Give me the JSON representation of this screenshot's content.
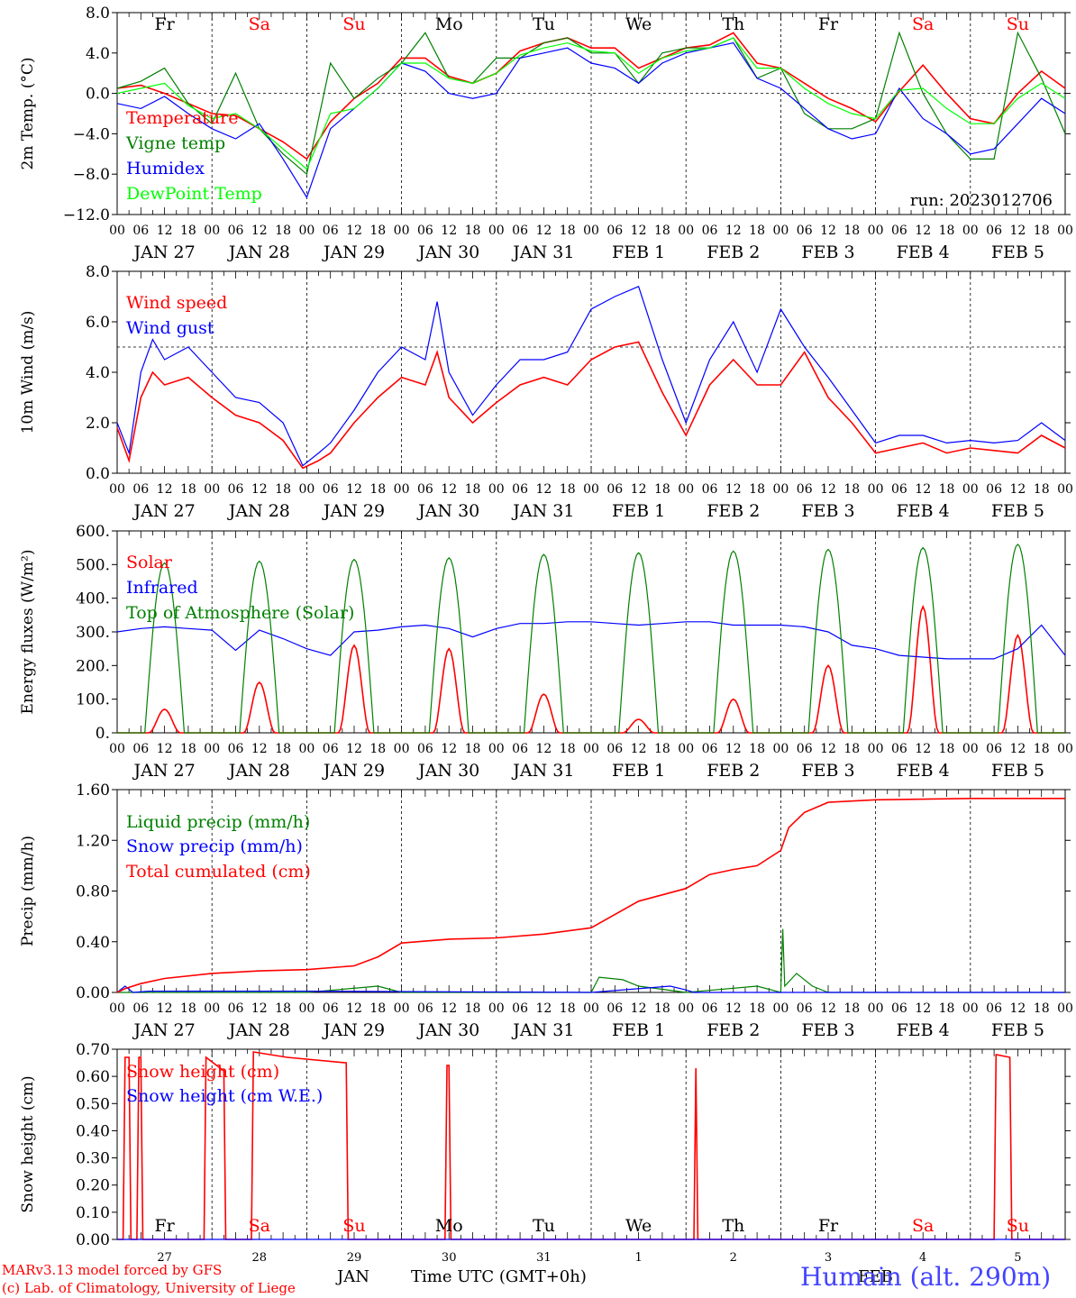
{
  "footer": {
    "model": "MARv3.13 model forced by GFS",
    "credit": "(c) Lab. of Climatology, University of Liege",
    "month": "JAN",
    "time_axis": "Time UTC (GMT+0h)",
    "month_overlap": "FEB",
    "station": "Humain (alt. 290m)"
  },
  "colors": {
    "red": "#ff0000",
    "green": "#008000",
    "blue": "#0000ff",
    "lightgreen": "#00ff00",
    "weekend": "#ff0000",
    "weekday": "#000000",
    "station": "#4444ff"
  },
  "axis": {
    "hour_ticks": [
      "00",
      "06",
      "12",
      "18"
    ],
    "final_tick": "00",
    "date_labels": [
      "JAN 27",
      "JAN 28",
      "JAN 29",
      "JAN 30",
      "JAN 31",
      "FEB  1",
      "FEB  2",
      "FEB  3",
      "FEB  4",
      "FEB  5"
    ],
    "day_names": [
      "Fr",
      "Sa",
      "Su",
      "Mo",
      "Tu",
      "We",
      "Th",
      "Fr",
      "Sa",
      "Su"
    ],
    "weekend": [
      false,
      true,
      true,
      false,
      false,
      false,
      false,
      false,
      true,
      true
    ],
    "day_numbers": [
      "27",
      "28",
      "29",
      "30",
      "31",
      "1",
      "2",
      "3",
      "4",
      "5"
    ]
  },
  "chart_data": [
    {
      "id": "temp",
      "type": "line",
      "ylabel": "2m Temp. (°C)",
      "ylim": [
        -12,
        8
      ],
      "yticks": [
        "8.0",
        "4.0",
        "0.0",
        "−4.0",
        "−8.0",
        "−12.0"
      ],
      "ytick_values": [
        8,
        4,
        0,
        -4,
        -8,
        -12
      ],
      "ref_line": 0,
      "annotation": "run: 2023012706",
      "series": [
        {
          "name": "Temperature",
          "color": "red",
          "x": [
            0,
            6,
            12,
            18,
            24,
            30,
            36,
            42,
            48,
            54,
            60,
            66,
            72,
            78,
            84,
            90,
            96,
            102,
            108,
            114,
            120,
            126,
            132,
            138,
            144,
            150,
            156,
            162,
            168,
            174,
            180,
            186,
            192,
            198,
            204,
            210,
            216,
            222,
            228,
            234,
            240
          ],
          "y": [
            0.5,
            0.8,
            0,
            -1.0,
            -2.0,
            -2.2,
            -3.5,
            -4.8,
            -6.5,
            -2.8,
            -0.5,
            1.0,
            3.5,
            3.5,
            1.7,
            1.0,
            2.0,
            4.2,
            5.0,
            5.5,
            4.5,
            4.5,
            2.5,
            3.5,
            4.5,
            4.8,
            6.0,
            3.0,
            2.5,
            1.0,
            -0.5,
            -1.5,
            -2.8,
            0.2,
            2.8,
            0,
            -2.5,
            -3.0,
            0,
            2.2,
            0.5
          ]
        },
        {
          "name": "Vigne temp",
          "color": "green",
          "x": [
            0,
            6,
            12,
            18,
            24,
            30,
            36,
            42,
            48,
            54,
            60,
            66,
            72,
            78,
            84,
            90,
            96,
            102,
            108,
            114,
            120,
            126,
            132,
            138,
            144,
            150,
            156,
            162,
            168,
            174,
            180,
            186,
            192,
            198,
            204,
            210,
            216,
            222,
            228,
            234,
            240
          ],
          "y": [
            0.5,
            1.2,
            2.5,
            -1.0,
            -3.0,
            2.0,
            -3.5,
            -6.0,
            -8.0,
            3.0,
            -0.5,
            1.5,
            3.0,
            6.0,
            1.5,
            1.0,
            3.5,
            3.5,
            5.0,
            5.5,
            4.0,
            4.0,
            1.0,
            4.0,
            4.5,
            4.5,
            5.5,
            1.5,
            2.5,
            -2.0,
            -3.5,
            -3.5,
            -2.5,
            6.0,
            0,
            -4.0,
            -6.5,
            -6.5,
            6.0,
            1.5,
            -4.0
          ]
        },
        {
          "name": "Humidex",
          "color": "blue",
          "x": [
            0,
            6,
            12,
            18,
            24,
            30,
            36,
            42,
            48,
            54,
            60,
            66,
            72,
            78,
            84,
            90,
            96,
            102,
            108,
            114,
            120,
            126,
            132,
            138,
            144,
            150,
            156,
            162,
            168,
            174,
            180,
            186,
            192,
            198,
            204,
            210,
            216,
            222,
            228,
            234,
            240
          ],
          "y": [
            -1.0,
            -1.5,
            -0.3,
            -2.0,
            -3.5,
            -4.5,
            -3.0,
            -6.5,
            -10.3,
            -3.5,
            -1.5,
            0.5,
            3.0,
            2.2,
            0,
            -0.5,
            0,
            3.5,
            4.0,
            4.5,
            3.0,
            2.5,
            1.0,
            3.0,
            4.0,
            4.5,
            5.0,
            1.5,
            0.5,
            -1.5,
            -3.5,
            -4.5,
            -4.0,
            0.5,
            -2.5,
            -4.0,
            -6.0,
            -5.5,
            -3.0,
            -0.5,
            -2.0
          ]
        },
        {
          "name": "DewPoint Temp",
          "color": "lightgreen",
          "x": [
            0,
            6,
            12,
            18,
            24,
            30,
            36,
            42,
            48,
            54,
            60,
            66,
            72,
            78,
            84,
            90,
            96,
            102,
            108,
            114,
            120,
            126,
            132,
            138,
            144,
            150,
            156,
            162,
            168,
            174,
            180,
            186,
            192,
            198,
            204,
            210,
            216,
            222,
            228,
            234,
            240
          ],
          "y": [
            0,
            0.5,
            1.0,
            -1.2,
            -2.5,
            -2.0,
            -3.5,
            -5.5,
            -7.5,
            -2.0,
            -1.5,
            0.5,
            3.0,
            3.0,
            1.5,
            1.0,
            2.0,
            3.8,
            4.5,
            5.0,
            4.2,
            4.0,
            2.0,
            3.5,
            4.2,
            4.5,
            5.5,
            2.5,
            2.5,
            0.5,
            -1.0,
            -2.0,
            -2.5,
            0.3,
            0.5,
            -1.5,
            -3.0,
            -3.0,
            -0.5,
            1.0,
            -0.5
          ]
        }
      ]
    },
    {
      "id": "wind",
      "type": "line",
      "ylabel": "10m Wind (m/s)",
      "ylim": [
        0,
        8
      ],
      "yticks": [
        "8.0",
        "6.0",
        "4.0",
        "2.0",
        "0.0"
      ],
      "ytick_values": [
        8,
        6,
        4,
        2,
        0
      ],
      "ref_line": 5,
      "series": [
        {
          "name": "Wind speed",
          "color": "red",
          "x": [
            0,
            3,
            6,
            9,
            12,
            18,
            24,
            30,
            36,
            42,
            47,
            51,
            54,
            60,
            66,
            72,
            78,
            81,
            84,
            90,
            96,
            102,
            108,
            114,
            120,
            126,
            132,
            138,
            144,
            150,
            156,
            162,
            168,
            174,
            180,
            186,
            192,
            198,
            204,
            210,
            216,
            222,
            228,
            234,
            240
          ],
          "y": [
            1.8,
            0.5,
            3.0,
            4.0,
            3.5,
            3.8,
            3.0,
            2.3,
            2.0,
            1.3,
            0.2,
            0.5,
            0.8,
            2.0,
            3.0,
            3.8,
            3.5,
            4.8,
            3.0,
            2.0,
            2.8,
            3.5,
            3.8,
            3.5,
            4.5,
            5.0,
            5.2,
            3.2,
            1.5,
            3.5,
            4.5,
            3.5,
            3.5,
            4.8,
            3.0,
            2.0,
            0.8,
            1.0,
            1.2,
            0.8,
            1.0,
            0.9,
            0.8,
            1.5,
            1.0
          ]
        },
        {
          "name": "Wind gust",
          "color": "blue",
          "x": [
            0,
            3,
            6,
            9,
            12,
            18,
            24,
            30,
            36,
            42,
            47,
            51,
            54,
            60,
            66,
            72,
            78,
            81,
            84,
            90,
            96,
            102,
            108,
            114,
            120,
            126,
            132,
            138,
            144,
            150,
            156,
            162,
            168,
            174,
            180,
            186,
            192,
            198,
            204,
            210,
            216,
            222,
            228,
            234,
            240
          ],
          "y": [
            2.0,
            0.8,
            4.0,
            5.3,
            4.5,
            5.0,
            4.0,
            3.0,
            2.8,
            2.0,
            0.3,
            0.8,
            1.2,
            2.5,
            4.0,
            5.0,
            4.5,
            6.8,
            4.0,
            2.3,
            3.5,
            4.5,
            4.5,
            4.8,
            6.5,
            7.0,
            7.4,
            4.5,
            2.0,
            4.5,
            6.0,
            4.0,
            6.5,
            5.0,
            3.8,
            2.5,
            1.2,
            1.5,
            1.5,
            1.2,
            1.3,
            1.2,
            1.3,
            2.0,
            1.3
          ]
        }
      ]
    },
    {
      "id": "energy",
      "type": "line",
      "ylabel": "Energy fluxes (W/m²)",
      "ylim": [
        0,
        600
      ],
      "yticks": [
        "600.",
        "500.",
        "400.",
        "300.",
        "200.",
        "100.",
        "0."
      ],
      "ytick_values": [
        600,
        500,
        400,
        300,
        200,
        100,
        0
      ],
      "series": [
        {
          "name": "Solar",
          "color": "red",
          "peaks": [
            70,
            150,
            260,
            250,
            115,
            40,
            100,
            200,
            375,
            290
          ]
        },
        {
          "name": "Infrared",
          "color": "blue",
          "x": [
            0,
            6,
            12,
            18,
            24,
            30,
            36,
            42,
            48,
            54,
            60,
            66,
            72,
            78,
            84,
            90,
            96,
            102,
            108,
            114,
            120,
            126,
            132,
            138,
            144,
            150,
            156,
            162,
            168,
            174,
            180,
            186,
            192,
            198,
            204,
            210,
            216,
            222,
            228,
            234,
            240
          ],
          "y": [
            300,
            310,
            315,
            310,
            305,
            245,
            305,
            280,
            250,
            230,
            300,
            305,
            315,
            320,
            310,
            285,
            310,
            325,
            325,
            330,
            330,
            325,
            320,
            325,
            330,
            330,
            320,
            320,
            320,
            315,
            300,
            260,
            250,
            230,
            225,
            220,
            220,
            220,
            250,
            320,
            230
          ]
        },
        {
          "name": "Top of Atmosphere (Solar)",
          "color": "green",
          "peaks": [
            505,
            510,
            515,
            520,
            530,
            535,
            540,
            545,
            550,
            560
          ]
        }
      ]
    },
    {
      "id": "precip",
      "type": "line",
      "ylabel": "Precip (mm/h)",
      "ylim": [
        0,
        1.6
      ],
      "yticks": [
        "1.60",
        "1.20",
        "0.80",
        "0.40",
        "0.00"
      ],
      "ytick_values": [
        1.6,
        1.2,
        0.8,
        0.4,
        0
      ],
      "series": [
        {
          "name": "Liquid precip (mm/h)",
          "color": "green",
          "x": [
            0,
            48,
            66,
            72,
            120,
            122,
            128,
            132,
            144,
            162,
            168,
            168.5,
            169,
            172,
            176,
            180,
            196,
            240
          ],
          "y": [
            0,
            0,
            0.05,
            0,
            0,
            0.12,
            0.1,
            0.05,
            0,
            0.05,
            0,
            0.5,
            0.05,
            0.15,
            0.05,
            0,
            0,
            0
          ]
        },
        {
          "name": "Snow precip (mm/h)",
          "color": "blue",
          "x": [
            0,
            2,
            4,
            8,
            48,
            120,
            140,
            144,
            146,
            240
          ],
          "y": [
            0,
            0.05,
            0,
            0.01,
            0.01,
            0,
            0.05,
            0.02,
            0,
            0
          ]
        },
        {
          "name": "Total cumulated (cm)",
          "color": "red",
          "x": [
            0,
            2,
            6,
            12,
            24,
            36,
            48,
            60,
            66,
            72,
            84,
            96,
            108,
            120,
            132,
            144,
            150,
            156,
            162,
            168,
            170,
            174,
            180,
            192,
            216,
            240
          ],
          "y": [
            0,
            0.03,
            0.07,
            0.11,
            0.15,
            0.17,
            0.18,
            0.21,
            0.28,
            0.39,
            0.42,
            0.43,
            0.46,
            0.51,
            0.72,
            0.82,
            0.93,
            0.97,
            1.0,
            1.12,
            1.3,
            1.42,
            1.5,
            1.52,
            1.53,
            1.53
          ]
        }
      ]
    },
    {
      "id": "snow",
      "type": "line",
      "ylabel": "Snow height (cm)",
      "ylim": [
        0,
        0.7
      ],
      "yticks": [
        "0.70",
        "0.60",
        "0.50",
        "0.40",
        "0.30",
        "0.20",
        "0.10",
        "0.00"
      ],
      "ytick_values": [
        0.7,
        0.6,
        0.5,
        0.4,
        0.3,
        0.2,
        0.1,
        0
      ],
      "series": [
        {
          "name": "Snow height (cm)",
          "color": "red",
          "x": [
            0,
            1.5,
            2,
            3,
            3.5,
            5,
            5.5,
            6,
            6.5,
            22,
            22.5,
            27,
            27.5,
            28,
            34,
            34.5,
            43,
            58,
            58.5,
            83,
            83.5,
            84,
            84.5,
            146,
            146.5,
            147,
            222,
            222.5,
            226,
            226.5,
            240
          ],
          "y": [
            0,
            0,
            0.67,
            0.67,
            0,
            0,
            0.67,
            0.67,
            0,
            0,
            0.67,
            0.62,
            0,
            0,
            0,
            0.69,
            0.67,
            0.65,
            0,
            0,
            0.64,
            0.64,
            0,
            0,
            0.63,
            0,
            0,
            0.68,
            0.67,
            0,
            0
          ]
        },
        {
          "name": "Snow height (cm W.E.)",
          "color": "blue",
          "x": [
            0,
            240
          ],
          "y": [
            0,
            0
          ]
        }
      ]
    }
  ]
}
